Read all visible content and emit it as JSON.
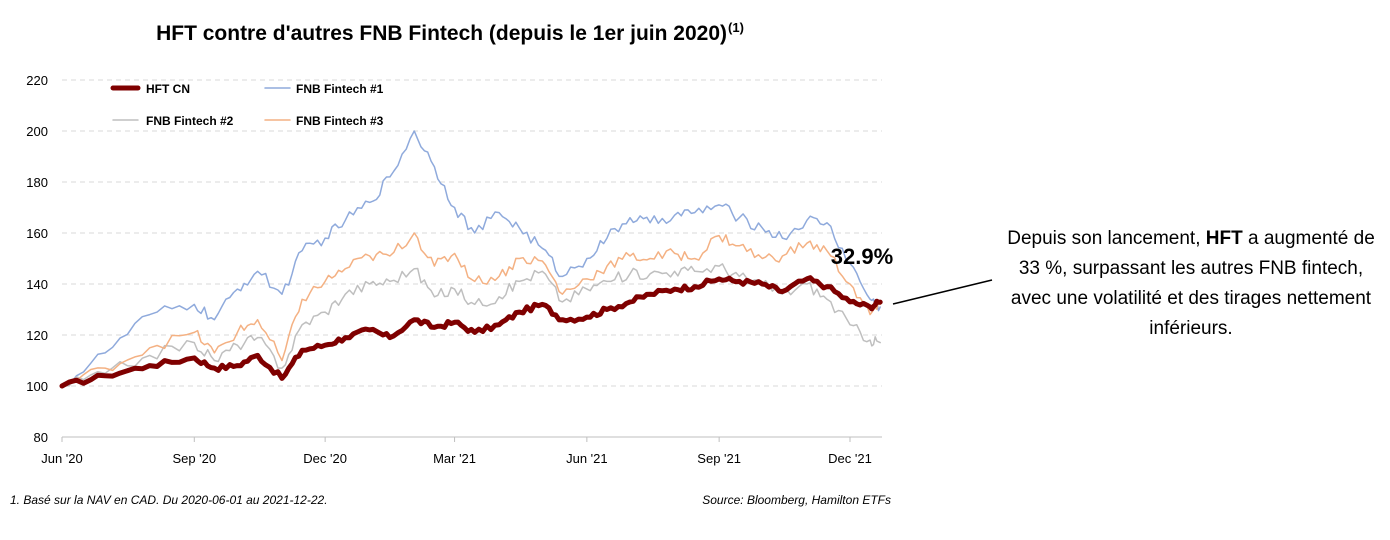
{
  "title": "HFT contre d'autres FNB Fintech (depuis le 1er juin 2020)",
  "title_superscript": "(1)",
  "callout": {
    "before_bold": "Depuis son lancement, ",
    "bold": "HFT",
    "after_bold": " a augmenté de 33 %, surpassant les autres FNB fintech, avec une volatilité et des tirages nettement inférieurs."
  },
  "footnote": "1. Basé sur la NAV en CAD. Du 2020-06-01 au 2021-12-22.",
  "source": "Source: Bloomberg, Hamilton ETFs",
  "chart_data": {
    "type": "line",
    "title": "HFT contre d'autres FNB Fintech (depuis le 1er juin 2020)",
    "xlabel": "",
    "ylabel": "",
    "ylim": [
      80,
      220
    ],
    "y_ticks": [
      "80",
      "100",
      "120",
      "140",
      "160",
      "180",
      "200",
      "220"
    ],
    "x_ticks": [
      "Jun '20",
      "Sep '20",
      "Dec '20",
      "Mar '21",
      "Jun '21",
      "Sep '21",
      "Dec '21"
    ],
    "grid": "horizontal dashed",
    "legend_position": "top-left",
    "annotation": "32.9%",
    "x": [
      "2020-06-01",
      "2020-07-01",
      "2020-08-01",
      "2020-09-01",
      "2020-09-15",
      "2020-10-01",
      "2020-10-15",
      "2020-11-01",
      "2020-11-15",
      "2020-12-01",
      "2020-12-15",
      "2021-01-01",
      "2021-01-15",
      "2021-02-01",
      "2021-02-15",
      "2021-03-01",
      "2021-03-15",
      "2021-04-01",
      "2021-04-15",
      "2021-05-01",
      "2021-05-15",
      "2021-06-01",
      "2021-06-15",
      "2021-07-01",
      "2021-07-15",
      "2021-08-01",
      "2021-08-15",
      "2021-09-01",
      "2021-09-15",
      "2021-10-01",
      "2021-10-15",
      "2021-11-01",
      "2021-11-15",
      "2021-12-01",
      "2021-12-15",
      "2021-12-22"
    ],
    "series": [
      {
        "name": "HFT CN",
        "color": "#7f0000",
        "width": 5,
        "values": [
          100,
          104,
          108,
          111,
          107,
          108,
          112,
          103,
          114,
          116,
          119,
          122,
          119,
          126,
          123,
          125,
          121,
          124,
          129,
          132,
          126,
          127,
          130,
          133,
          136,
          138,
          139,
          142,
          141,
          140,
          137,
          142,
          139,
          133,
          131,
          132.9
        ]
      },
      {
        "name": "FNB Fintech #1",
        "color": "#8faadc",
        "width": 1.5,
        "values": [
          100,
          113,
          128,
          132,
          126,
          138,
          145,
          136,
          153,
          158,
          165,
          172,
          182,
          200,
          186,
          170,
          160,
          168,
          162,
          154,
          143,
          150,
          158,
          166,
          164,
          167,
          168,
          171,
          166,
          162,
          158,
          165,
          164,
          148,
          134,
          131
        ]
      },
      {
        "name": "FNB Fintech #2",
        "color": "#bfbfbf",
        "width": 1.5,
        "values": [
          100,
          105,
          112,
          117,
          110,
          116,
          119,
          107,
          124,
          129,
          136,
          140,
          141,
          146,
          135,
          138,
          132,
          135,
          141,
          145,
          133,
          138,
          141,
          144,
          144,
          145,
          145,
          147,
          143,
          140,
          136,
          140,
          134,
          124,
          118,
          117
        ]
      },
      {
        "name": "FNB Fintech #3",
        "color": "#f4b183",
        "width": 1.5,
        "values": [
          100,
          107,
          115,
          121,
          113,
          121,
          126,
          110,
          134,
          141,
          146,
          151,
          151,
          160,
          147,
          152,
          141,
          143,
          150,
          149,
          136,
          142,
          147,
          151,
          150,
          152,
          150,
          159,
          155,
          150,
          151,
          156,
          153,
          140,
          128,
          132
        ]
      }
    ]
  }
}
